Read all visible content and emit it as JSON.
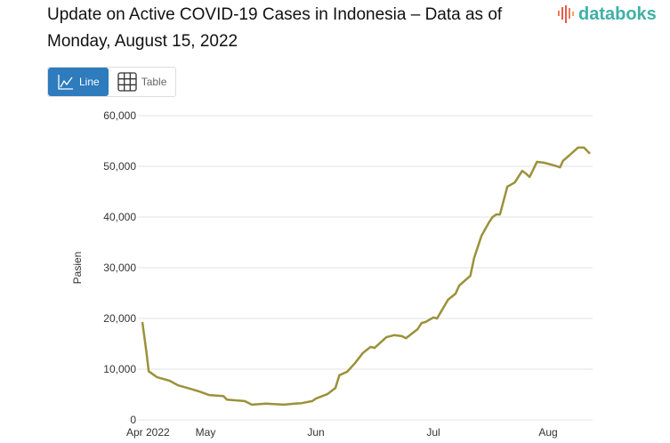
{
  "header": {
    "title": "Update on Active COVID-19 Cases in Indonesia – Data as of Monday, August 15, 2022",
    "logo_text": "databoks"
  },
  "toggle": {
    "line_label": "Line",
    "table_label": "Table",
    "active": "Line",
    "icons": [
      "line-chart-icon",
      "table-grid-icon"
    ]
  },
  "colors": {
    "line": "#9b913a",
    "active_button": "#2e7bbd",
    "logo": "#3fb0a6"
  },
  "chart_data": {
    "type": "line",
    "title": "",
    "xlabel": "",
    "ylabel": "Pasien",
    "ylim": [
      0,
      60000
    ],
    "yticks": [
      0,
      10000,
      20000,
      30000,
      40000,
      50000,
      60000
    ],
    "ytick_labels": [
      "0",
      "10,000",
      "20,000",
      "30,000",
      "40,000",
      "50,000",
      "60,000"
    ],
    "xtick_labels": [
      "Apr 2022",
      "May",
      "Jun",
      "Jul",
      "Aug"
    ],
    "xtick_dates": [
      "2022-04-01",
      "2022-05-01",
      "2022-06-01",
      "2022-07-01",
      "2022-08-01"
    ],
    "grid": true,
    "x": [
      "2022-04-01",
      "2022-04-03",
      "2022-04-04",
      "2022-04-08",
      "2022-04-14",
      "2022-04-18",
      "2022-04-24",
      "2022-04-28",
      "2022-05-02",
      "2022-05-06",
      "2022-05-07",
      "2022-05-12",
      "2022-05-14",
      "2022-05-18",
      "2022-05-23",
      "2022-05-26",
      "2022-05-28",
      "2022-05-31",
      "2022-06-01",
      "2022-06-04",
      "2022-06-06",
      "2022-06-07",
      "2022-06-09",
      "2022-06-11",
      "2022-06-13",
      "2022-06-15",
      "2022-06-16",
      "2022-06-19",
      "2022-06-21",
      "2022-06-23",
      "2022-06-24",
      "2022-06-27",
      "2022-06-28",
      "2022-06-29",
      "2022-07-01",
      "2022-07-02",
      "2022-07-05",
      "2022-07-07",
      "2022-07-08",
      "2022-07-11",
      "2022-07-12",
      "2022-07-14",
      "2022-07-16",
      "2022-07-17",
      "2022-07-18",
      "2022-07-19",
      "2022-07-21",
      "2022-07-23",
      "2022-07-25",
      "2022-07-26",
      "2022-07-27",
      "2022-07-29",
      "2022-07-31",
      "2022-08-03",
      "2022-08-05",
      "2022-08-06",
      "2022-08-08",
      "2022-08-11",
      "2022-08-13",
      "2022-08-15"
    ],
    "series": [
      {
        "values": [
          19300,
          13200,
          9600,
          8400,
          7700,
          6800,
          6100,
          5600,
          4900,
          4700,
          4000,
          3700,
          3000,
          3200,
          3000,
          3200,
          3300,
          3700,
          4200,
          5100,
          6300,
          8800,
          9500,
          11200,
          13200,
          14400,
          14200,
          16300,
          16700,
          16500,
          16100,
          17900,
          19100,
          19300,
          20200,
          20000,
          23700,
          24900,
          26500,
          28400,
          31900,
          36300,
          38900,
          40000,
          40500,
          40500,
          46000,
          46800,
          49100,
          48600,
          47900,
          50900,
          50700,
          50200,
          49800,
          51100,
          52100,
          53700,
          53700,
          52500
        ]
      }
    ]
  }
}
